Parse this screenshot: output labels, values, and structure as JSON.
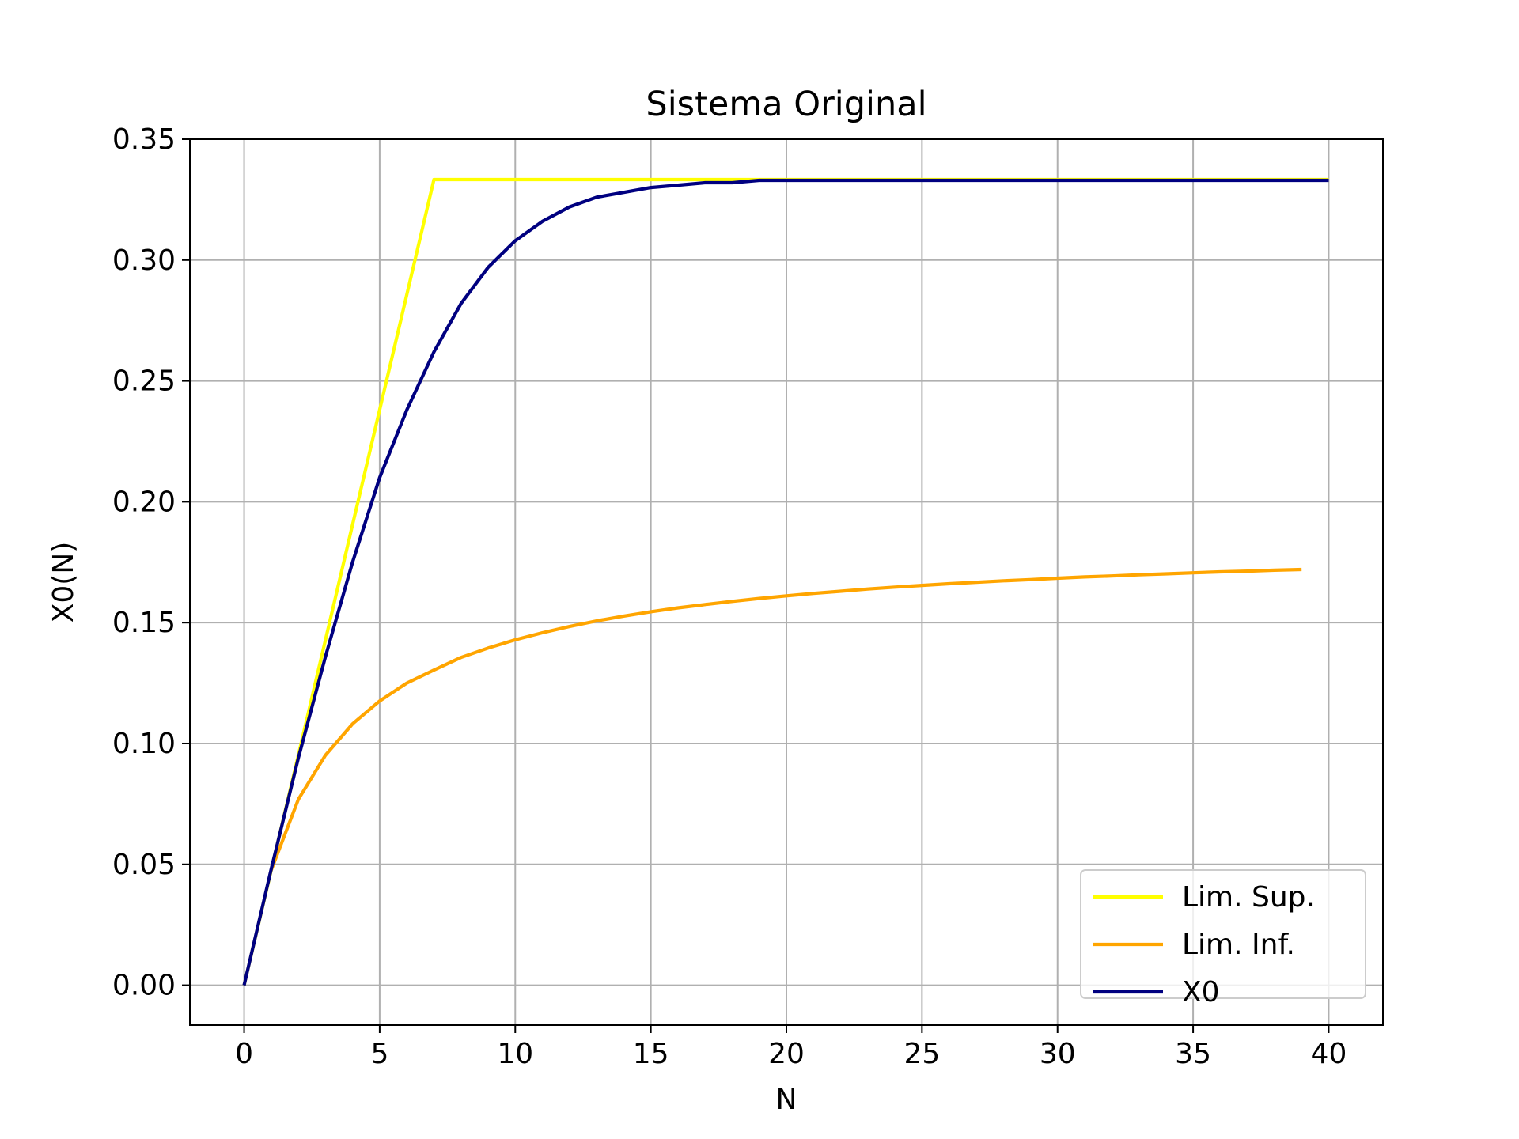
{
  "chart_data": {
    "type": "line",
    "title": "Sistema Original",
    "xlabel": "N",
    "ylabel": "X0(N)",
    "xlim": [
      -2,
      42
    ],
    "ylim": [
      -0.0165,
      0.35
    ],
    "xticks": [
      0,
      5,
      10,
      15,
      20,
      25,
      30,
      35,
      40
    ],
    "yticks": [
      0.0,
      0.05,
      0.1,
      0.15,
      0.2,
      0.25,
      0.3,
      0.35
    ],
    "xtick_labels": [
      "0",
      "5",
      "10",
      "15",
      "20",
      "25",
      "30",
      "35",
      "40"
    ],
    "ytick_labels": [
      "0.00",
      "0.05",
      "0.10",
      "0.15",
      "0.20",
      "0.25",
      "0.30",
      "0.35"
    ],
    "grid": true,
    "legend_position": "lower right",
    "series": [
      {
        "name": "Lim. Sup.",
        "color": "#ffff00",
        "x": [
          0,
          1,
          2,
          3,
          4,
          5,
          6,
          7,
          8,
          9,
          10,
          11,
          12,
          13,
          14,
          15,
          16,
          17,
          18,
          19,
          20,
          21,
          22,
          23,
          24,
          25,
          26,
          27,
          28,
          29,
          30,
          31,
          32,
          33,
          34,
          35,
          36,
          37,
          38,
          39,
          40
        ],
        "y": [
          0.0,
          0.0476,
          0.0952,
          0.1429,
          0.1905,
          0.2381,
          0.2857,
          0.3333,
          0.3333,
          0.3333,
          0.3333,
          0.3333,
          0.3333,
          0.3333,
          0.3333,
          0.3333,
          0.3333,
          0.3333,
          0.3333,
          0.3333,
          0.3333,
          0.3333,
          0.3333,
          0.3333,
          0.3333,
          0.3333,
          0.3333,
          0.3333,
          0.3333,
          0.3333,
          0.3333,
          0.3333,
          0.3333,
          0.3333,
          0.3333,
          0.3333,
          0.3333,
          0.3333,
          0.3333,
          0.3333,
          0.3333
        ]
      },
      {
        "name": "Lim. Inf.",
        "color": "#ffa500",
        "x": [
          1,
          2,
          3,
          4,
          5,
          6,
          7,
          8,
          9,
          10,
          11,
          12,
          13,
          14,
          15,
          16,
          17,
          18,
          19,
          20,
          21,
          22,
          23,
          24,
          25,
          26,
          27,
          28,
          29,
          30,
          31,
          32,
          33,
          34,
          35,
          36,
          37,
          38,
          39
        ],
        "y": [
          0.0476,
          0.0769,
          0.0952,
          0.1081,
          0.1176,
          0.125,
          0.1304,
          0.1356,
          0.1395,
          0.1429,
          0.1458,
          0.1484,
          0.1507,
          0.1527,
          0.1545,
          0.1561,
          0.1575,
          0.1588,
          0.16,
          0.1611,
          0.1621,
          0.163,
          0.1639,
          0.1647,
          0.1654,
          0.1661,
          0.1667,
          0.1673,
          0.1678,
          0.1684,
          0.1689,
          0.1693,
          0.1698,
          0.1702,
          0.1706,
          0.171,
          0.1713,
          0.1717,
          0.172
        ]
      },
      {
        "name": "X0",
        "color": "#000080",
        "x": [
          0,
          1,
          2,
          3,
          4,
          5,
          6,
          7,
          8,
          9,
          10,
          11,
          12,
          13,
          14,
          15,
          16,
          17,
          18,
          19,
          20,
          21,
          22,
          23,
          24,
          25,
          26,
          27,
          28,
          29,
          30,
          31,
          32,
          33,
          34,
          35,
          36,
          37,
          38,
          39,
          40
        ],
        "y": [
          0.0,
          0.048,
          0.094,
          0.136,
          0.175,
          0.21,
          0.238,
          0.262,
          0.282,
          0.297,
          0.308,
          0.316,
          0.322,
          0.326,
          0.328,
          0.33,
          0.331,
          0.332,
          0.332,
          0.333,
          0.333,
          0.333,
          0.333,
          0.333,
          0.333,
          0.333,
          0.333,
          0.333,
          0.333,
          0.333,
          0.333,
          0.333,
          0.333,
          0.333,
          0.333,
          0.333,
          0.333,
          0.333,
          0.333,
          0.333,
          0.333
        ]
      }
    ]
  }
}
